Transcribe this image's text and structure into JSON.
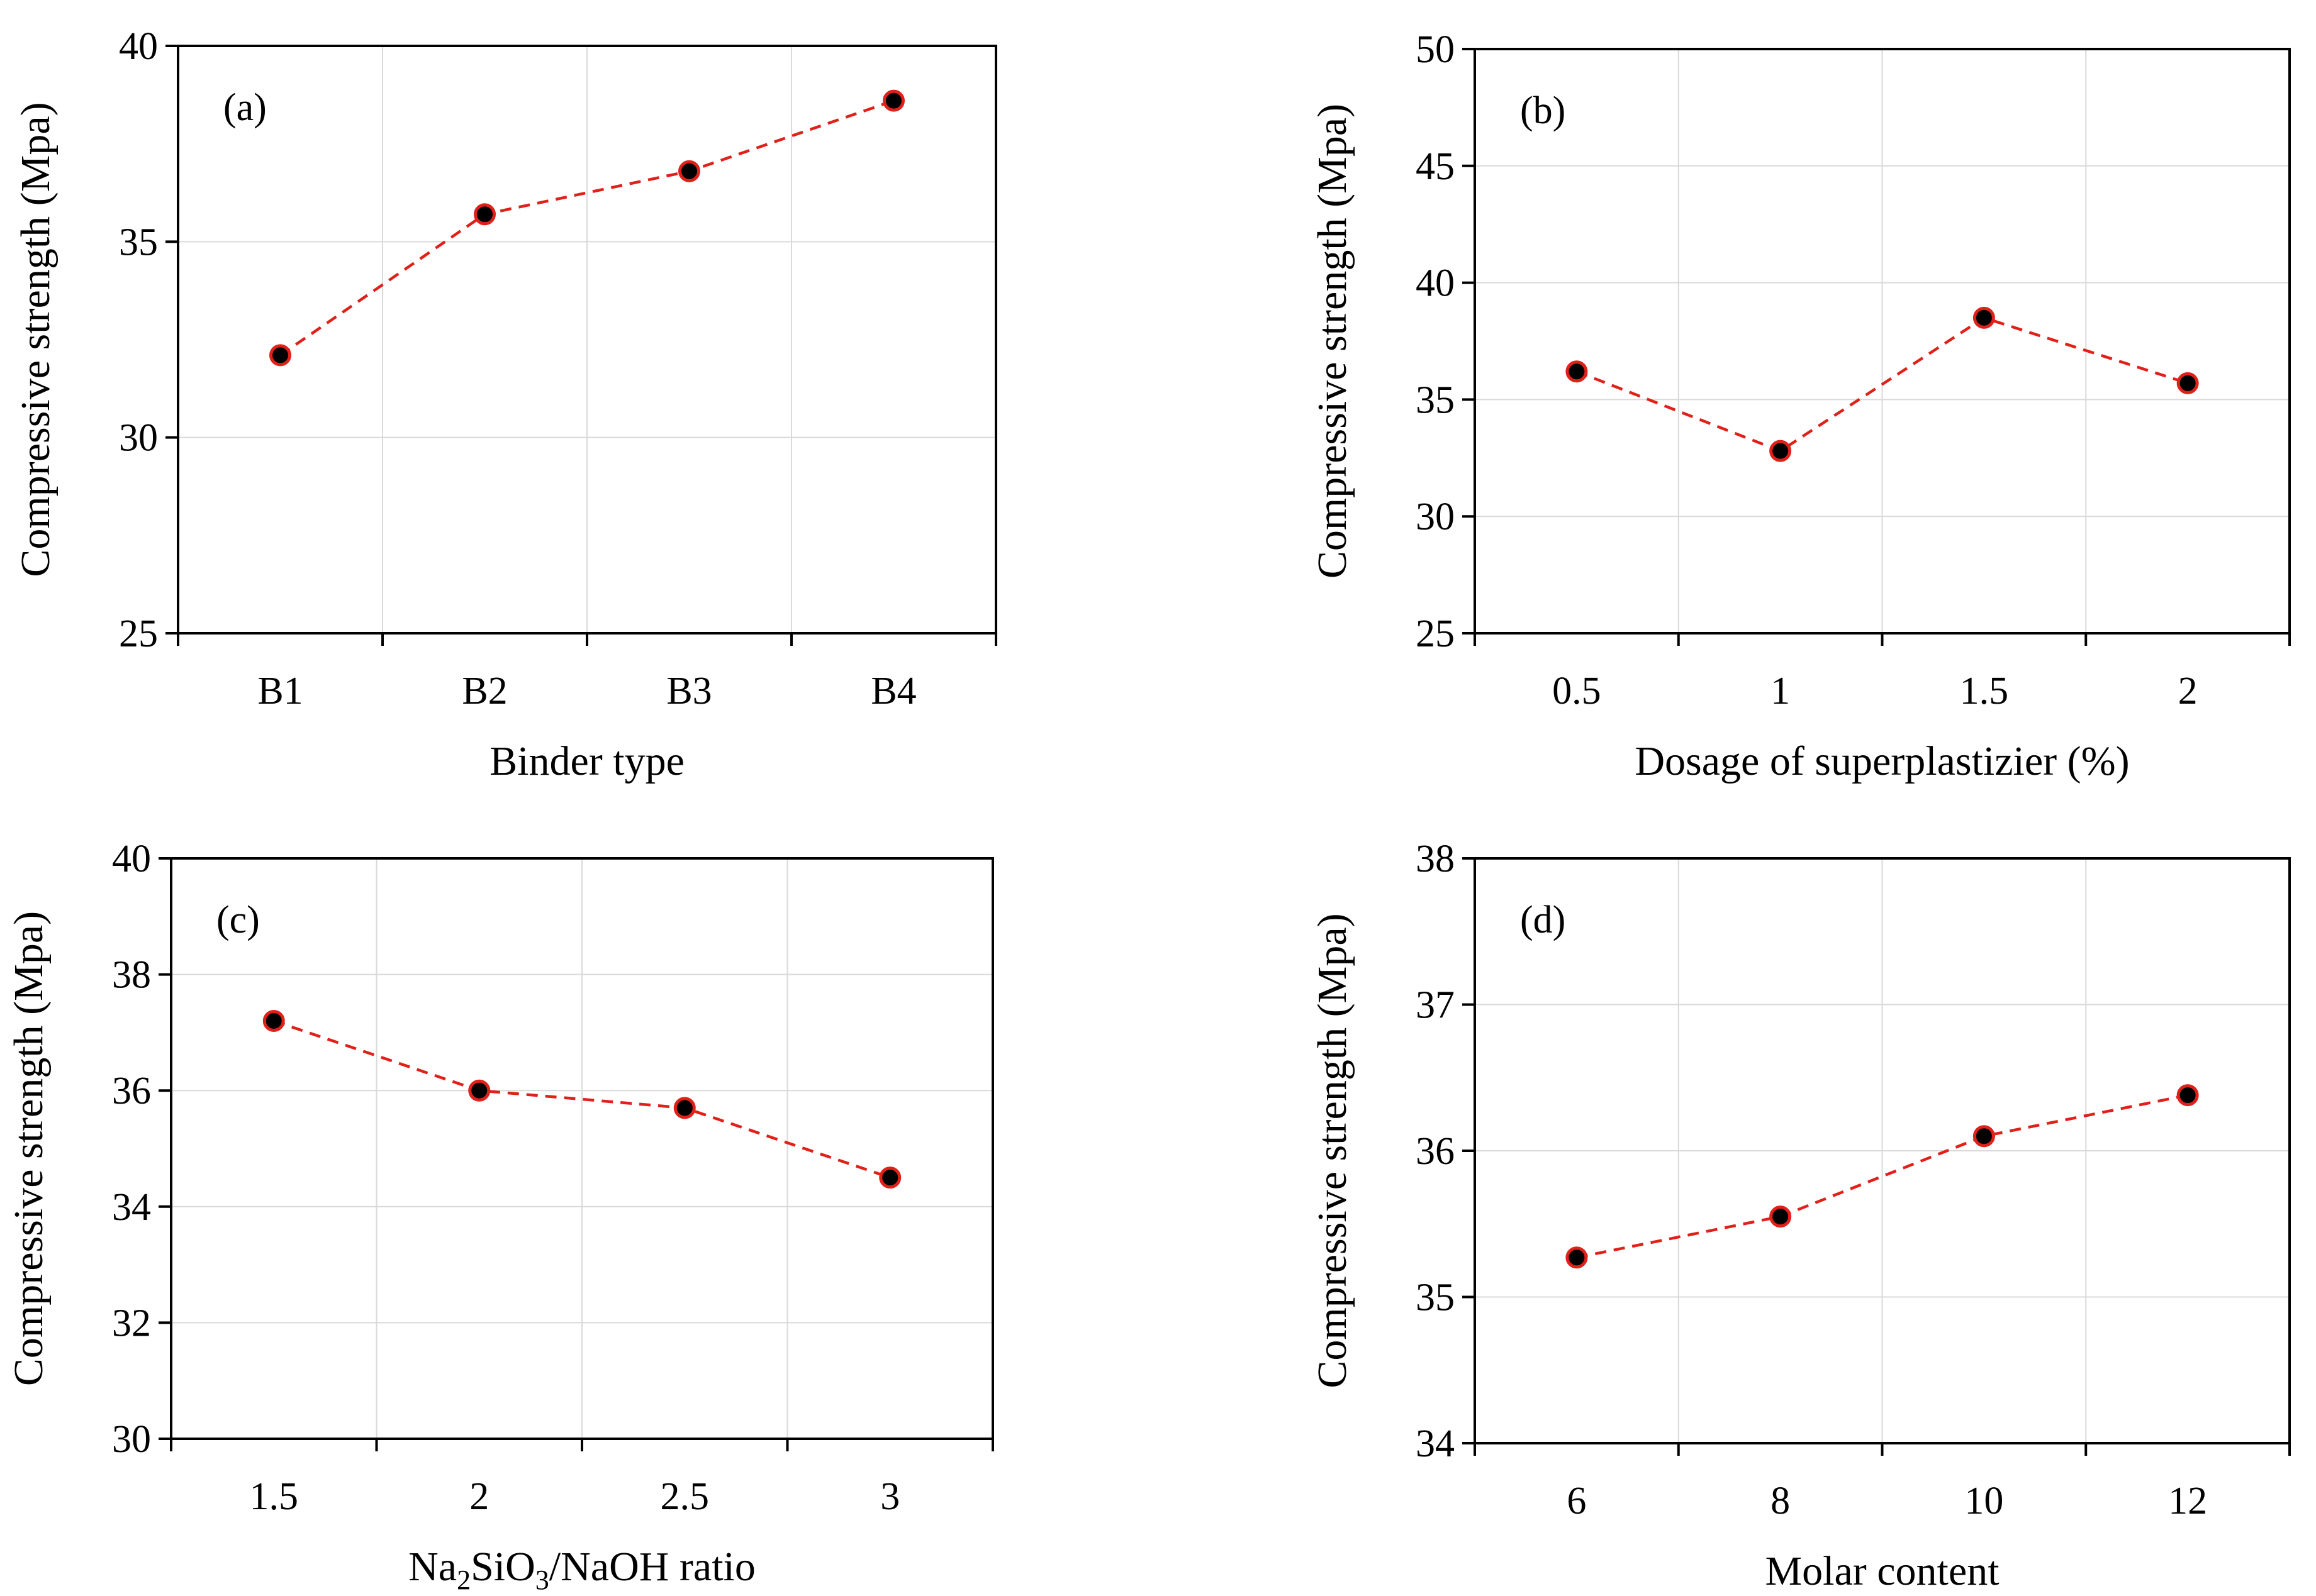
{
  "chart_data": [
    {
      "panel": "(a)",
      "type": "line",
      "xlabel": "Binder type",
      "xlabel_sub": null,
      "ylabel": "Compressive strength (Mpa)",
      "x_type": "category",
      "categories": [
        "B1",
        "B2",
        "B3",
        "B4"
      ],
      "values": [
        32.1,
        35.7,
        36.8,
        38.6
      ],
      "ylim": [
        25,
        40
      ],
      "yticks": [
        "25",
        "30",
        "35",
        "40"
      ],
      "grid": true,
      "line_color": "#e0211a",
      "marker_color": "#000000"
    },
    {
      "panel": "(b)",
      "type": "line",
      "xlabel": "Dosage of superplastizier (%)",
      "xlabel_sub": null,
      "ylabel": "Compressive strength (Mpa)",
      "x_type": "category",
      "categories": [
        "0.5",
        "1",
        "1.5",
        "2"
      ],
      "values": [
        36.2,
        32.8,
        38.5,
        35.7
      ],
      "ylim": [
        25,
        50
      ],
      "yticks": [
        "25",
        "30",
        "35",
        "40",
        "45",
        "50"
      ],
      "grid": true,
      "line_color": "#e0211a",
      "marker_color": "#000000"
    },
    {
      "panel": "(c)",
      "type": "line",
      "xlabel": "Na2SiO3/NaOH ratio",
      "xlabel_sub": [
        "Na",
        "2",
        "SiO",
        "3",
        "/NaOH ratio"
      ],
      "ylabel": "Compressive strength (Mpa)",
      "x_type": "category",
      "categories": [
        "1.5",
        "2",
        "2.5",
        "3"
      ],
      "values": [
        37.2,
        36.0,
        35.7,
        34.5
      ],
      "ylim": [
        30,
        40
      ],
      "yticks": [
        "30",
        "32",
        "34",
        "36",
        "38",
        "40"
      ],
      "grid": true,
      "line_color": "#e0211a",
      "marker_color": "#000000"
    },
    {
      "panel": "(d)",
      "type": "line",
      "xlabel": "Molar  content",
      "xlabel_sub": null,
      "ylabel": "Compressive strength (Mpa)",
      "x_type": "category",
      "categories": [
        "6",
        "8",
        "10",
        "12"
      ],
      "values": [
        35.27,
        35.55,
        36.1,
        36.38
      ],
      "ylim": [
        34,
        38
      ],
      "yticks": [
        "34",
        "35",
        "36",
        "37",
        "38"
      ],
      "grid": true,
      "line_color": "#e0211a",
      "marker_color": "#000000"
    }
  ]
}
